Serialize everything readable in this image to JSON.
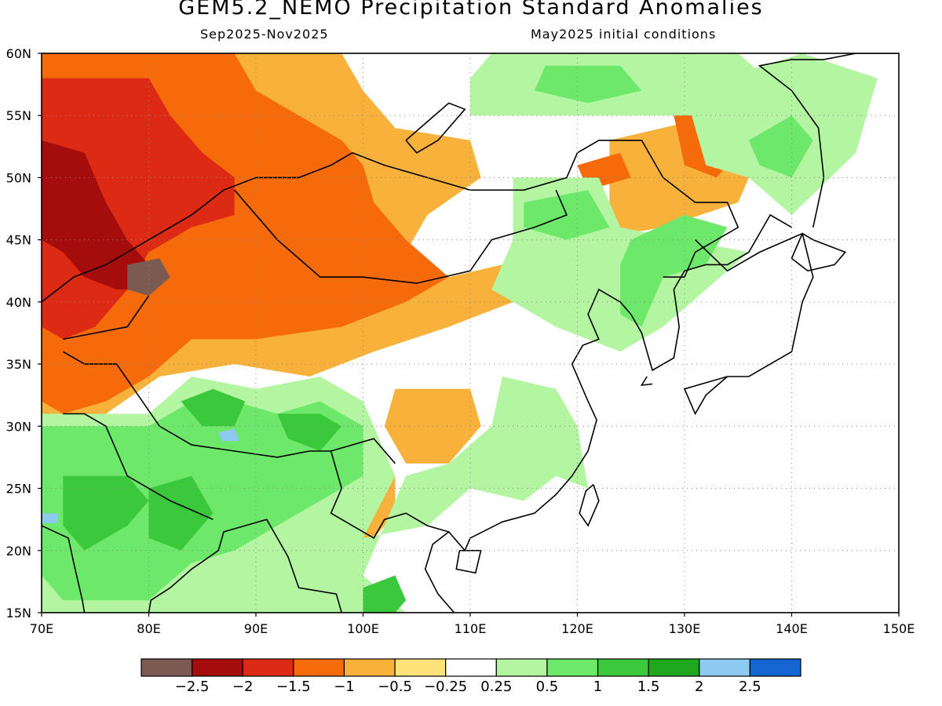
{
  "title": "GEM5.2_NEMO Precipitation Standard Anomalies",
  "period": "Sep2025-Nov2025",
  "initial_conditions": "May2025 initial conditions",
  "map": {
    "lon_range": [
      70,
      150
    ],
    "lat_range": [
      15,
      60
    ],
    "lon_ticks": [
      "70E",
      "80E",
      "90E",
      "100E",
      "110E",
      "120E",
      "130E",
      "140E",
      "150E"
    ],
    "lat_ticks": [
      "60N",
      "55N",
      "50N",
      "45N",
      "40N",
      "35N",
      "30N",
      "25N",
      "20N",
      "15N"
    ],
    "grid": "dotted"
  },
  "colorbar": {
    "labels": [
      "-2.5",
      "-2",
      "-1.5",
      "-1",
      "-0.5",
      "-0.25",
      "0.25",
      "0.5",
      "1",
      "1.5",
      "2",
      "2.5"
    ],
    "colors": [
      "#7b5a52",
      "#a50c0c",
      "#dc2a14",
      "#f56a0a",
      "#f8b23c",
      "#ffe27a",
      "#ffffff",
      "#b4f5a2",
      "#6ee86a",
      "#3cc83c",
      "#1ea81e",
      "#8ccaf0",
      "#1464d2"
    ]
  },
  "anomaly_regions": [
    {
      "level": "orange_light",
      "poly": [
        [
          70,
          60
        ],
        [
          98,
          60
        ],
        [
          100,
          57
        ],
        [
          103,
          54
        ],
        [
          110,
          53
        ],
        [
          111,
          50
        ],
        [
          106,
          47
        ],
        [
          104,
          44
        ],
        [
          108,
          42
        ],
        [
          113,
          43
        ],
        [
          114,
          40
        ],
        [
          108,
          38
        ],
        [
          101,
          36
        ],
        [
          95,
          34
        ],
        [
          88,
          35
        ],
        [
          81,
          34
        ],
        [
          76,
          31
        ],
        [
          72,
          29
        ],
        [
          70,
          30
        ]
      ]
    },
    {
      "level": "orange",
      "poly": [
        [
          70,
          60
        ],
        [
          88,
          60
        ],
        [
          90,
          57
        ],
        [
          94,
          55
        ],
        [
          98,
          53
        ],
        [
          100,
          51
        ],
        [
          101,
          48
        ],
        [
          104,
          45
        ],
        [
          108,
          42
        ],
        [
          104,
          40
        ],
        [
          98,
          38
        ],
        [
          90,
          37
        ],
        [
          84,
          37
        ],
        [
          80,
          34
        ],
        [
          76,
          32
        ],
        [
          72,
          31
        ],
        [
          70,
          32
        ]
      ]
    },
    {
      "level": "red",
      "poly": [
        [
          70,
          58
        ],
        [
          80,
          58
        ],
        [
          82,
          55
        ],
        [
          85,
          52
        ],
        [
          88,
          50
        ],
        [
          88,
          47
        ],
        [
          84,
          46
        ],
        [
          80,
          44
        ],
        [
          78,
          41
        ],
        [
          75,
          38
        ],
        [
          72,
          37
        ],
        [
          70,
          38
        ]
      ]
    },
    {
      "level": "darkred",
      "poly": [
        [
          70,
          53
        ],
        [
          74,
          52
        ],
        [
          76,
          48
        ],
        [
          78,
          45
        ],
        [
          80,
          43
        ],
        [
          80,
          41
        ],
        [
          77,
          41
        ],
        [
          74,
          42
        ],
        [
          72,
          44
        ],
        [
          70,
          45
        ]
      ]
    },
    {
      "level": "brown",
      "poly": [
        [
          78,
          43
        ],
        [
          81,
          43.5
        ],
        [
          82,
          42
        ],
        [
          80,
          40.5
        ],
        [
          78,
          41
        ]
      ]
    },
    {
      "level": "orange_light",
      "poly": [
        [
          103,
          33
        ],
        [
          110,
          33
        ],
        [
          111,
          30
        ],
        [
          108,
          27
        ],
        [
          104,
          27
        ],
        [
          102,
          30
        ]
      ]
    },
    {
      "level": "orange_light",
      "poly": [
        [
          99,
          25
        ],
        [
          103,
          26
        ],
        [
          103,
          23
        ],
        [
          100,
          20
        ],
        [
          98,
          22
        ]
      ]
    },
    {
      "level": "orange_light",
      "poly": [
        [
          123,
          53
        ],
        [
          133,
          55
        ],
        [
          137,
          52
        ],
        [
          135,
          48
        ],
        [
          128,
          46
        ],
        [
          121,
          45
        ],
        [
          116,
          44
        ],
        [
          114,
          42
        ],
        [
          119,
          44
        ],
        [
          123,
          47
        ]
      ]
    },
    {
      "level": "orange",
      "poly": [
        [
          129,
          55
        ],
        [
          134,
          55.5
        ],
        [
          136,
          53
        ],
        [
          133,
          50
        ],
        [
          130,
          51
        ]
      ]
    },
    {
      "level": "red",
      "poly": [
        [
          131,
          54
        ],
        [
          133,
          54.5
        ],
        [
          134,
          52.5
        ],
        [
          132,
          52
        ]
      ]
    },
    {
      "level": "orange",
      "poly": [
        [
          120,
          51
        ],
        [
          124,
          52
        ],
        [
          125,
          50
        ],
        [
          121,
          49
        ]
      ]
    },
    {
      "level": "green_pale",
      "poly": [
        [
          112,
          60
        ],
        [
          135,
          60
        ],
        [
          139,
          57
        ],
        [
          134,
          55
        ],
        [
          125,
          55
        ],
        [
          116,
          55
        ],
        [
          110,
          55
        ],
        [
          110,
          58
        ]
      ]
    },
    {
      "level": "green",
      "poly": [
        [
          117,
          59
        ],
        [
          124,
          59
        ],
        [
          126,
          57
        ],
        [
          121,
          56
        ],
        [
          116,
          57
        ]
      ]
    },
    {
      "level": "green_pale",
      "poly": [
        [
          114,
          50
        ],
        [
          122,
          50
        ],
        [
          124,
          46
        ],
        [
          130,
          45
        ],
        [
          136,
          44
        ],
        [
          132,
          41
        ],
        [
          128,
          38
        ],
        [
          124,
          36
        ],
        [
          118,
          38
        ],
        [
          112,
          41
        ],
        [
          114,
          45
        ]
      ]
    },
    {
      "level": "green",
      "poly": [
        [
          115,
          48
        ],
        [
          121,
          49
        ],
        [
          123,
          46
        ],
        [
          119,
          45
        ],
        [
          115,
          46
        ]
      ]
    },
    {
      "level": "green",
      "poly": [
        [
          125,
          45
        ],
        [
          130,
          47
        ],
        [
          134,
          46
        ],
        [
          132,
          43
        ],
        [
          128,
          42
        ],
        [
          126,
          38
        ],
        [
          124,
          39
        ],
        [
          124,
          43
        ]
      ]
    },
    {
      "level": "green_pale",
      "poly": [
        [
          130,
          57
        ],
        [
          141,
          60
        ],
        [
          148,
          58
        ],
        [
          146,
          52
        ],
        [
          140,
          47
        ],
        [
          136,
          50
        ],
        [
          132,
          51
        ]
      ]
    },
    {
      "level": "green",
      "poly": [
        [
          136,
          53
        ],
        [
          140,
          55
        ],
        [
          142,
          53
        ],
        [
          140,
          50
        ],
        [
          137,
          51
        ]
      ]
    },
    {
      "level": "green_pale",
      "poly": [
        [
          70,
          31
        ],
        [
          80,
          31
        ],
        [
          84,
          34
        ],
        [
          90,
          33
        ],
        [
          96,
          34
        ],
        [
          100,
          32
        ],
        [
          103,
          26
        ],
        [
          100,
          21
        ],
        [
          106,
          22
        ],
        [
          110,
          25
        ],
        [
          115,
          24
        ],
        [
          118,
          26
        ],
        [
          121,
          25
        ],
        [
          120,
          30
        ],
        [
          118,
          33
        ],
        [
          113,
          34
        ],
        [
          112,
          30
        ],
        [
          108,
          27
        ],
        [
          104,
          26
        ],
        [
          100,
          18
        ],
        [
          104,
          15
        ],
        [
          70,
          15
        ]
      ]
    },
    {
      "level": "green",
      "poly": [
        [
          70,
          30
        ],
        [
          80,
          30
        ],
        [
          84,
          32
        ],
        [
          88,
          32
        ],
        [
          92,
          31
        ],
        [
          96,
          32
        ],
        [
          100,
          30
        ],
        [
          100,
          26
        ],
        [
          96,
          24
        ],
        [
          92,
          22
        ],
        [
          88,
          20
        ],
        [
          84,
          19
        ],
        [
          80,
          16
        ],
        [
          72,
          16
        ],
        [
          70,
          18
        ]
      ]
    },
    {
      "level": "green_mid",
      "poly": [
        [
          72,
          26
        ],
        [
          78,
          26
        ],
        [
          80,
          24
        ],
        [
          78,
          22
        ],
        [
          74,
          20
        ],
        [
          72,
          22
        ]
      ]
    },
    {
      "level": "green_mid",
      "poly": [
        [
          80,
          25
        ],
        [
          84,
          26
        ],
        [
          86,
          23
        ],
        [
          83,
          20
        ],
        [
          80,
          21
        ]
      ]
    },
    {
      "level": "green_mid",
      "poly": [
        [
          83,
          32
        ],
        [
          86,
          33
        ],
        [
          89,
          32
        ],
        [
          88,
          30
        ],
        [
          85,
          30
        ]
      ]
    },
    {
      "level": "green_mid",
      "poly": [
        [
          92,
          31
        ],
        [
          96,
          31
        ],
        [
          98,
          30
        ],
        [
          96,
          28
        ],
        [
          93,
          29
        ]
      ]
    },
    {
      "level": "green_mid",
      "poly": [
        [
          100,
          17
        ],
        [
          103,
          18
        ],
        [
          104,
          16
        ],
        [
          103,
          15
        ],
        [
          100,
          15
        ]
      ]
    },
    {
      "level": "blue_light",
      "poly": [
        [
          86.5,
          29.5
        ],
        [
          88,
          29.8
        ],
        [
          88.5,
          28.8
        ],
        [
          86.8,
          28.8
        ]
      ]
    },
    {
      "level": "blue_light",
      "poly": [
        [
          70,
          23
        ],
        [
          71.5,
          23
        ],
        [
          71.5,
          22.2
        ],
        [
          70,
          22.2
        ]
      ]
    }
  ]
}
